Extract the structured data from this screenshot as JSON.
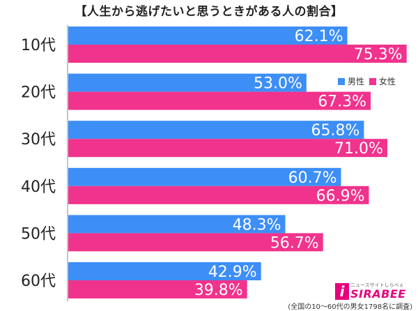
{
  "chart_data": {
    "type": "bar",
    "orientation": "horizontal",
    "title": "【人生から逃げたいと思うときがある人の割合】",
    "categories": [
      "10代",
      "20代",
      "30代",
      "40代",
      "50代",
      "60代"
    ],
    "series": [
      {
        "name": "男性",
        "color": "#3d8ef7",
        "values": [
          62.1,
          53.0,
          65.8,
          60.7,
          48.3,
          42.9
        ]
      },
      {
        "name": "女性",
        "color": "#f0338c",
        "values": [
          75.3,
          67.3,
          71.0,
          66.9,
          56.7,
          39.8
        ]
      }
    ],
    "value_suffix": "%",
    "xlim": [
      0,
      100
    ],
    "grid": false,
    "legend": "right"
  },
  "logo": {
    "sub": "ニュースサイトしらべぇ",
    "text": "SIRABEE",
    "mark": "i"
  },
  "footnote": "(全国の10～60代の男女1798名に調査)"
}
